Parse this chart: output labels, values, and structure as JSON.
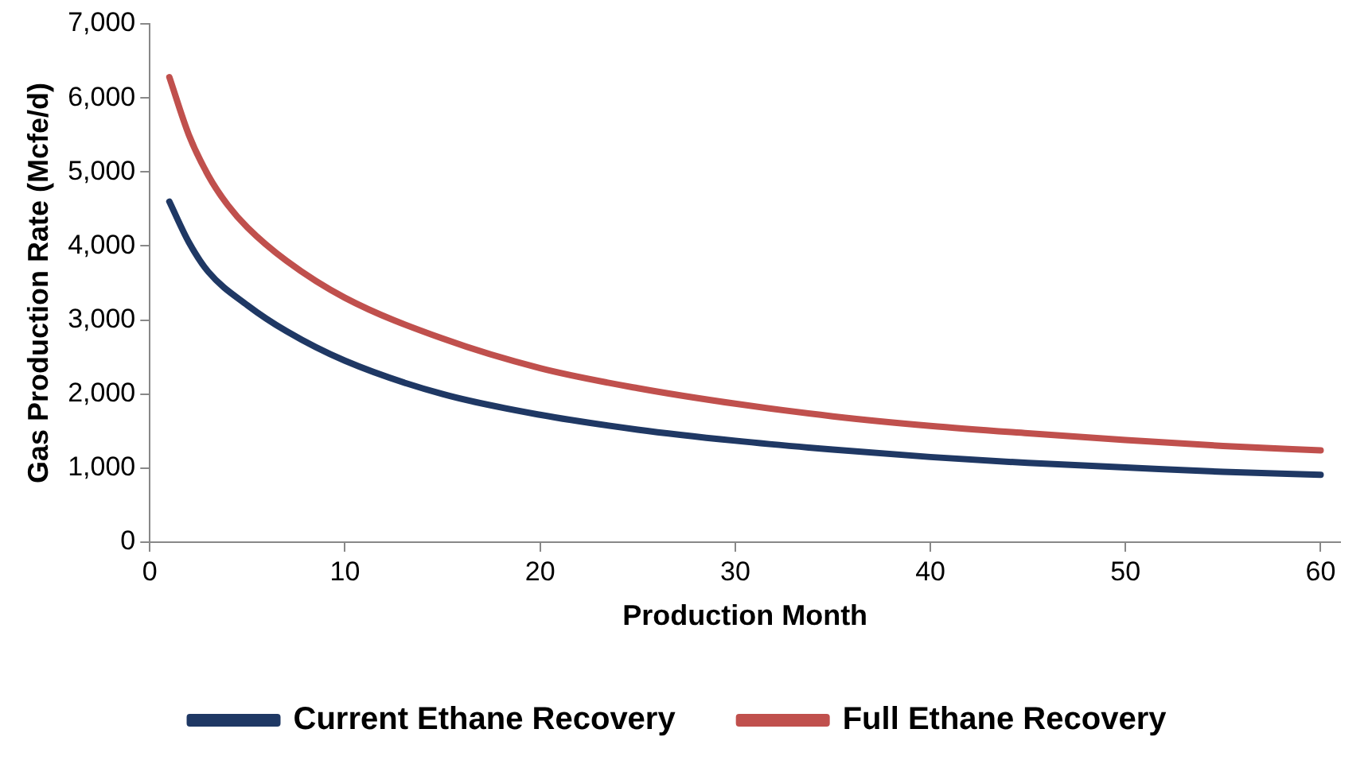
{
  "chart_data": {
    "type": "line",
    "xlabel": "Production Month",
    "ylabel": "Gas Production Rate (Mcfe/d)",
    "xlim": [
      0,
      61
    ],
    "xticks": [
      0,
      10,
      20,
      30,
      40,
      50,
      60
    ],
    "ylim": [
      0,
      7000
    ],
    "yticks": [
      {
        "value": 0,
        "label": "0"
      },
      {
        "value": 1000,
        "label": "1,000"
      },
      {
        "value": 2000,
        "label": "2,000"
      },
      {
        "value": 3000,
        "label": "3,000"
      },
      {
        "value": 4000,
        "label": "4,000"
      },
      {
        "value": 5000,
        "label": "5,000"
      },
      {
        "value": 6000,
        "label": "6,000"
      },
      {
        "value": 7000,
        "label": "7,000"
      }
    ],
    "grid": false,
    "legend": "bottom",
    "marker": "none",
    "line_style": "solid",
    "series": [
      {
        "name": "Current Ethane Recovery",
        "color": "#1f3864",
        "x": [
          1,
          2,
          3,
          5,
          7,
          10,
          15,
          20,
          25,
          30,
          35,
          40,
          45,
          50,
          55,
          60
        ],
        "values": [
          4600,
          4050,
          3650,
          3200,
          2850,
          2450,
          2000,
          1720,
          1520,
          1370,
          1250,
          1150,
          1070,
          1010,
          950,
          910
        ]
      },
      {
        "name": "Full Ethane Recovery",
        "color": "#c0504d",
        "x": [
          1,
          2,
          3,
          4,
          5,
          7,
          10,
          15,
          20,
          25,
          30,
          35,
          40,
          45,
          50,
          55,
          60
        ],
        "values": [
          6280,
          5500,
          4950,
          4550,
          4250,
          3800,
          3300,
          2750,
          2350,
          2080,
          1870,
          1700,
          1570,
          1470,
          1380,
          1300,
          1240
        ]
      }
    ]
  }
}
